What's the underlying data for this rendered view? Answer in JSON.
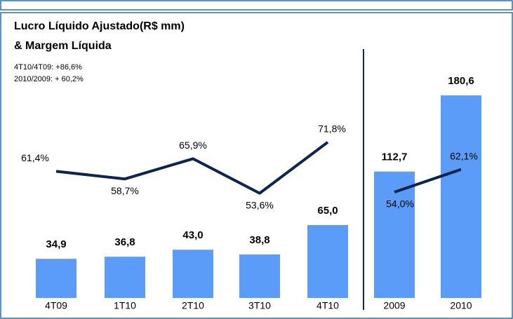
{
  "chart_data": [
    {
      "type": "combo",
      "title": "Lucro Líquido Ajustado(R$ mm)",
      "subtitle": "& Margem Líquida",
      "annotations": [
        "4T10/4T09: +86,6%",
        "2010/2009: + 60,2%"
      ],
      "categories": [
        "4T09",
        "1T10",
        "2T10",
        "3T10",
        "4T10"
      ],
      "series": [
        {
          "type": "bar",
          "color": "#5b9cf8",
          "values": [
            34.9,
            36.8,
            43.0,
            38.8,
            65.0
          ],
          "value_labels": [
            "34,9",
            "36,8",
            "43,0",
            "38,8",
            "65,0"
          ]
        },
        {
          "type": "line",
          "color": "#0d2451",
          "values": [
            61.4,
            58.7,
            65.9,
            53.6,
            71.8
          ],
          "value_labels": [
            "61,4%",
            "58,7%",
            "65,9%",
            "53,6%",
            "71,8%"
          ]
        }
      ]
    },
    {
      "type": "combo",
      "categories": [
        "2009",
        "2010"
      ],
      "series": [
        {
          "type": "bar",
          "color": "#5b9cf8",
          "values": [
            112.7,
            180.6
          ],
          "value_labels": [
            "112,7",
            "180,6"
          ]
        },
        {
          "type": "line",
          "color": "#0d2451",
          "values": [
            54.0,
            62.1
          ],
          "value_labels": [
            "54,0%",
            "62,1%"
          ]
        }
      ]
    }
  ]
}
